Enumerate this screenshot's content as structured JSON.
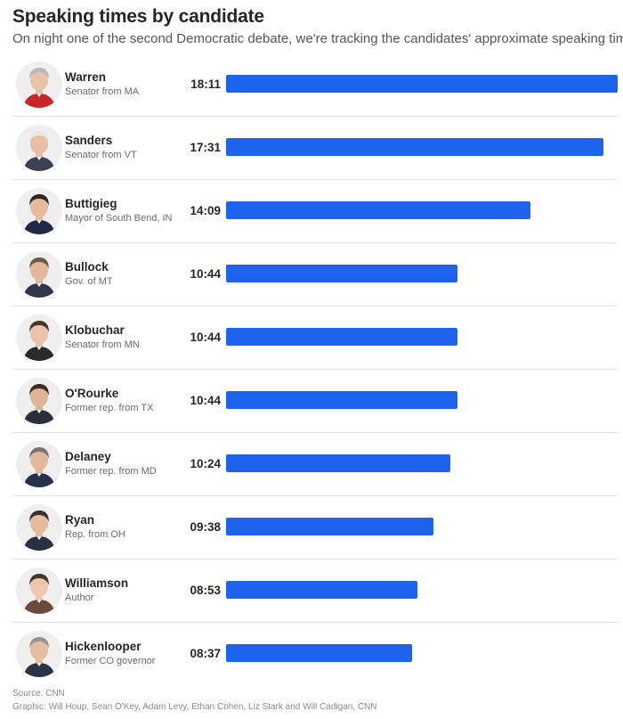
{
  "chart_data": {
    "type": "bar",
    "orientation": "horizontal",
    "title": "Speaking times by candidate",
    "subtitle": "On night one of the second Democratic debate, we're tracking the candidates' approximate speaking times.",
    "series_color": "#1e63ee",
    "rows": [
      {
        "name": "Warren",
        "role": "Senator from MA",
        "time": "18:11",
        "seconds": 1091,
        "skin": "#e8c3a8",
        "hair": "#b9b7b4",
        "shirt": "#c62828"
      },
      {
        "name": "Sanders",
        "role": "Senator from VT",
        "time": "17:31",
        "seconds": 1051,
        "skin": "#e8bfa3",
        "hair": "#e9e9e9",
        "shirt": "#3b4252"
      },
      {
        "name": "Buttigieg",
        "role": "Mayor of South Bend, IN",
        "time": "14:09",
        "seconds": 849,
        "skin": "#e5bb9b",
        "hair": "#2f2622",
        "shirt": "#1f2a44"
      },
      {
        "name": "Bullock",
        "role": "Gov. of MT",
        "time": "10:44",
        "seconds": 644,
        "skin": "#e2b79a",
        "hair": "#6e5a45",
        "shirt": "#2e3848"
      },
      {
        "name": "Klobuchar",
        "role": "Senator from MN",
        "time": "10:44",
        "seconds": 644,
        "skin": "#eac3aa",
        "hair": "#4a3527",
        "shirt": "#2b2b2b"
      },
      {
        "name": "O'Rourke",
        "role": "Former rep. from TX",
        "time": "10:44",
        "seconds": 644,
        "skin": "#dfb497",
        "hair": "#3a2d26",
        "shirt": "#2a2f3a"
      },
      {
        "name": "Delaney",
        "role": "Former rep. from MD",
        "time": "10:24",
        "seconds": 624,
        "skin": "#e3b899",
        "hair": "#7a7470",
        "shirt": "#25314a"
      },
      {
        "name": "Ryan",
        "role": "Rep. from OH",
        "time": "09:38",
        "seconds": 578,
        "skin": "#e4bb9e",
        "hair": "#3b2f28",
        "shirt": "#273142"
      },
      {
        "name": "Williamson",
        "role": "Author",
        "time": "08:53",
        "seconds": 533,
        "skin": "#ecc7ad",
        "hair": "#4a3426",
        "shirt": "#6b4a3a"
      },
      {
        "name": "Hickenlooper",
        "role": "Former CO governor",
        "time": "08:37",
        "seconds": 517,
        "skin": "#e6bda0",
        "hair": "#9a948d",
        "shirt": "#2a3446"
      }
    ],
    "max_seconds": 1091
  },
  "footer": {
    "source": "Source: CNN",
    "credits": "Graphic: Will Houp, Sean O'Key, Adam Levy, Ethan Cohen, Liz Stark and Will Cadigan, CNN"
  }
}
